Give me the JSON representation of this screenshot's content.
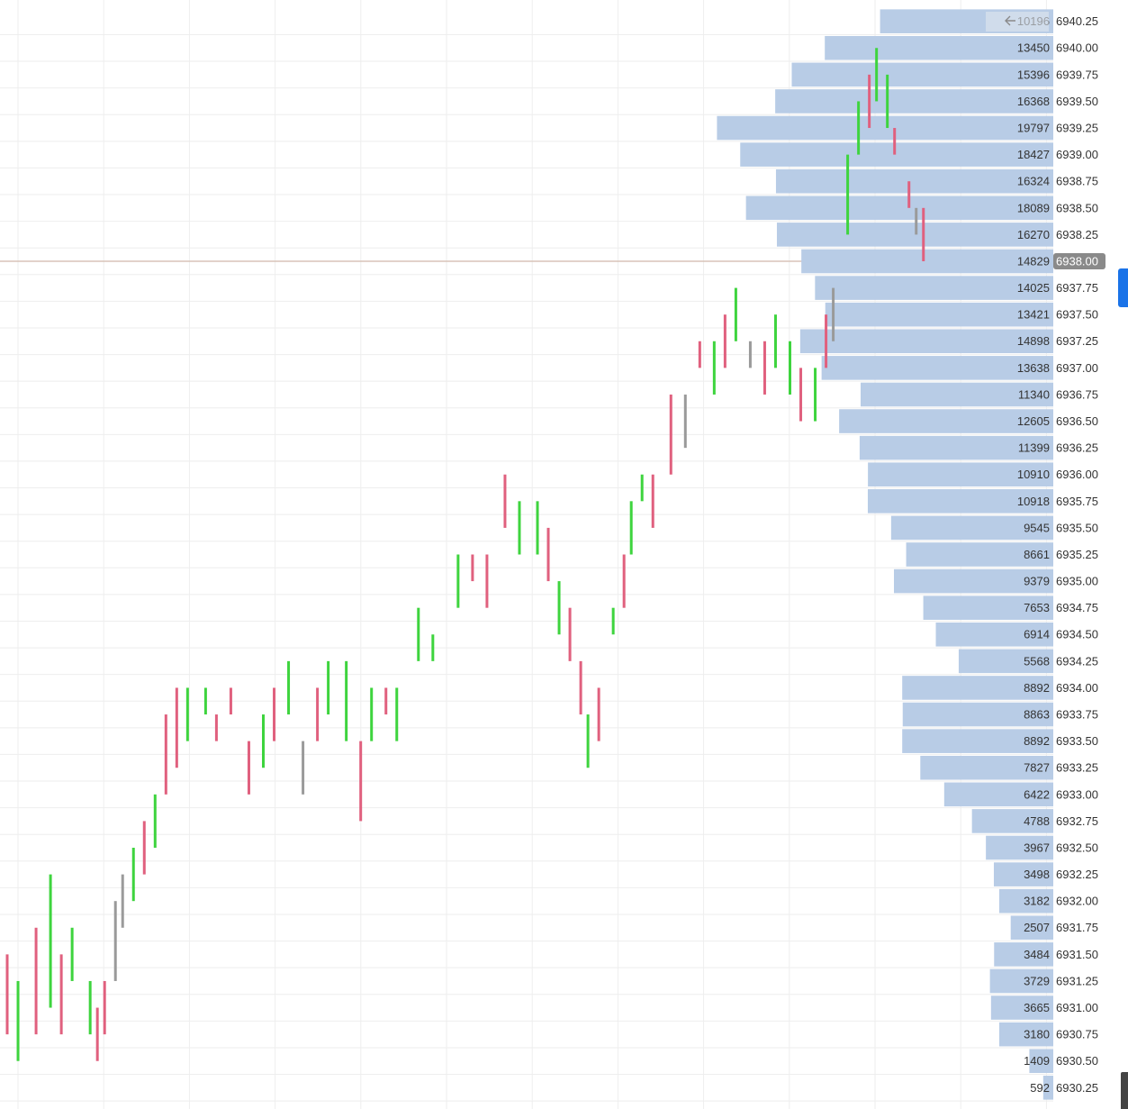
{
  "chart_data": {
    "type": "volume-profile",
    "levels": [
      {
        "value": 6940.25,
        "label": "6940.25"
      },
      {
        "value": 6940.0,
        "label": "6940.00"
      },
      {
        "value": 6939.75,
        "label": "6939.75"
      },
      {
        "value": 6939.5,
        "label": "6939.50"
      },
      {
        "value": 6939.25,
        "label": "6939.25"
      },
      {
        "value": 6939.0,
        "label": "6939.00"
      },
      {
        "value": 6938.75,
        "label": "6938.75"
      },
      {
        "value": 6938.5,
        "label": "6938.50"
      },
      {
        "value": 6938.25,
        "label": "6938.25"
      },
      {
        "value": 6938.0,
        "label": "6938.00"
      },
      {
        "value": 6937.75,
        "label": "6937.75"
      },
      {
        "value": 6937.5,
        "label": "6937.50"
      },
      {
        "value": 6937.25,
        "label": "6937.25"
      },
      {
        "value": 6937.0,
        "label": "6937.00"
      },
      {
        "value": 6936.75,
        "label": "6936.75"
      },
      {
        "value": 6936.5,
        "label": "6936.50"
      },
      {
        "value": 6936.25,
        "label": "6936.25"
      },
      {
        "value": 6936.0,
        "label": "6936.00"
      },
      {
        "value": 6935.75,
        "label": "6935.75"
      },
      {
        "value": 6935.5,
        "label": "6935.50"
      },
      {
        "value": 6935.25,
        "label": "6935.25"
      },
      {
        "value": 6935.0,
        "label": "6935.00"
      },
      {
        "value": 6934.75,
        "label": "6934.75"
      },
      {
        "value": 6934.5,
        "label": "6934.50"
      },
      {
        "value": 6934.25,
        "label": "6934.25"
      },
      {
        "value": 6934.0,
        "label": "6934.00"
      },
      {
        "value": 6933.75,
        "label": "6933.75"
      },
      {
        "value": 6933.5,
        "label": "6933.50"
      },
      {
        "value": 6933.25,
        "label": "6933.25"
      },
      {
        "value": 6933.0,
        "label": "6933.00"
      },
      {
        "value": 6932.75,
        "label": "6932.75"
      },
      {
        "value": 6932.5,
        "label": "6932.50"
      },
      {
        "value": 6932.25,
        "label": "6932.25"
      },
      {
        "value": 6932.0,
        "label": "6932.00"
      },
      {
        "value": 6931.75,
        "label": "6931.75"
      },
      {
        "value": 6931.5,
        "label": "6931.50"
      },
      {
        "value": 6931.25,
        "label": "6931.25"
      },
      {
        "value": 6931.0,
        "label": "6931.00"
      },
      {
        "value": 6930.75,
        "label": "6930.75"
      },
      {
        "value": 6930.5,
        "label": "6930.50"
      },
      {
        "value": 6930.25,
        "label": "6930.25"
      }
    ],
    "volumes": [
      10196,
      13450,
      15396,
      16368,
      19797,
      18427,
      16324,
      18089,
      16270,
      14829,
      14025,
      13421,
      14898,
      13638,
      11340,
      12605,
      11399,
      10910,
      10918,
      9545,
      8661,
      9379,
      7653,
      6914,
      5568,
      8892,
      8863,
      8892,
      7827,
      6422,
      4788,
      3967,
      3498,
      3182,
      2507,
      3484,
      3729,
      3665,
      3180,
      1409,
      592
    ],
    "volume_lim": [
      0,
      62000
    ],
    "volume_color": "#b8cce6",
    "last_price": 6938.0,
    "ylim": [
      6930.05,
      6940.45
    ],
    "xlim": [
      0,
      292
    ],
    "bars": {
      "x": [
        2,
        5,
        10,
        14,
        17,
        20,
        25,
        27,
        29,
        32,
        34,
        37,
        40,
        43,
        46,
        49,
        52,
        57,
        60,
        64,
        69,
        73,
        76,
        80,
        84,
        88,
        91,
        96,
        100,
        103,
        107,
        110,
        116,
        120,
        127,
        131,
        135,
        140,
        144,
        149,
        152,
        155,
        158,
        161,
        163,
        166,
        170,
        173,
        175,
        178,
        181,
        186,
        190,
        194,
        198,
        201,
        204,
        208,
        212,
        215,
        219,
        222,
        226,
        229,
        231,
        235,
        238,
        241,
        243,
        246,
        248,
        252,
        254,
        256
      ],
      "low": [
        6930.75,
        6930.5,
        6930.75,
        6931.0,
        6930.75,
        6931.25,
        6930.75,
        6930.5,
        6930.75,
        6931.25,
        6931.75,
        6932.0,
        6932.25,
        6932.5,
        6933.0,
        6933.25,
        6933.5,
        6933.75,
        6933.5,
        6933.75,
        6933.0,
        6933.25,
        6933.5,
        6933.75,
        6933.0,
        6933.5,
        6933.75,
        6933.5,
        6932.75,
        6933.5,
        6933.75,
        6933.5,
        6934.25,
        6934.25,
        6934.75,
        6935.0,
        6934.75,
        6935.5,
        6935.25,
        6935.25,
        6935.0,
        6934.5,
        6934.25,
        6933.75,
        6933.25,
        6933.5,
        6934.5,
        6934.75,
        6935.25,
        6935.75,
        6935.5,
        6936.0,
        6936.25,
        6937.0,
        6936.75,
        6937.0,
        6937.25,
        6937.0,
        6936.75,
        6937.0,
        6936.75,
        6936.5,
        6936.5,
        6937.0,
        6937.25,
        6938.25,
        6939.0,
        6939.25,
        6939.5,
        6939.25,
        6939.0,
        6938.5,
        6938.25,
        6938.0
      ],
      "high": [
        6931.5,
        6931.25,
        6931.75,
        6932.25,
        6931.5,
        6931.75,
        6931.25,
        6931.0,
        6931.25,
        6932.0,
        6932.25,
        6932.5,
        6932.75,
        6933.0,
        6933.75,
        6934.0,
        6934.0,
        6934.0,
        6933.75,
        6934.0,
        6933.5,
        6933.75,
        6934.0,
        6934.25,
        6933.5,
        6934.0,
        6934.25,
        6934.25,
        6933.5,
        6934.0,
        6934.0,
        6934.0,
        6934.75,
        6934.5,
        6935.25,
        6935.25,
        6935.25,
        6936.0,
        6935.75,
        6935.75,
        6935.5,
        6935.0,
        6934.75,
        6934.25,
        6933.75,
        6934.0,
        6934.75,
        6935.25,
        6935.75,
        6936.0,
        6936.0,
        6936.75,
        6936.75,
        6937.25,
        6937.25,
        6937.5,
        6937.75,
        6937.25,
        6937.25,
        6937.5,
        6937.25,
        6937.0,
        6937.0,
        6937.5,
        6937.75,
        6939.0,
        6939.5,
        6939.75,
        6940.0,
        6939.75,
        6939.25,
        6938.75,
        6938.5,
        6938.5
      ],
      "dir": [
        -1,
        1,
        -1,
        1,
        -1,
        1,
        1,
        -1,
        -1,
        0,
        0,
        1,
        -1,
        1,
        -1,
        -1,
        1,
        1,
        -1,
        -1,
        -1,
        1,
        -1,
        1,
        0,
        -1,
        1,
        1,
        -1,
        1,
        -1,
        1,
        1,
        1,
        1,
        -1,
        -1,
        -1,
        1,
        1,
        -1,
        1,
        -1,
        -1,
        1,
        -1,
        1,
        -1,
        1,
        1,
        -1,
        -1,
        0,
        -1,
        1,
        -1,
        1,
        0,
        -1,
        1,
        1,
        -1,
        1,
        -1,
        0,
        1,
        1,
        -1,
        1,
        1,
        -1,
        -1,
        0,
        -1
      ]
    },
    "colors": {
      "up": "#3ed43e",
      "down": "#e0607e",
      "flat": "#9a9a9a"
    },
    "grid": true
  }
}
